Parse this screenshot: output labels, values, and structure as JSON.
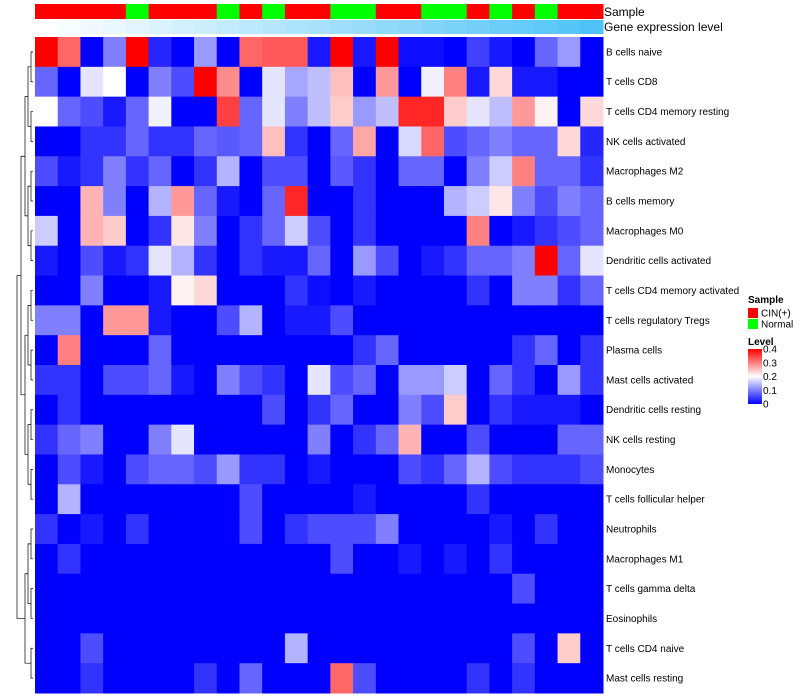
{
  "chart_data": {
    "type": "heatmap",
    "title": "",
    "annotations": {
      "sample_label": "Sample",
      "gene_label": "Gene expression level",
      "sample_groups": [
        "CIN(+)",
        "CIN(+)",
        "CIN(+)",
        "CIN(+)",
        "Normal",
        "CIN(+)",
        "CIN(+)",
        "CIN(+)",
        "Normal",
        "CIN(+)",
        "Normal",
        "CIN(+)",
        "CIN(+)",
        "Normal",
        "Normal",
        "CIN(+)",
        "CIN(+)",
        "Normal",
        "Normal",
        "CIN(+)",
        "Normal",
        "CIN(+)",
        "Normal",
        "CIN(+)",
        "CIN(+)"
      ],
      "gene_expression_level": [
        0.02,
        0.04,
        0.06,
        0.08,
        0.1,
        0.12,
        0.14,
        0.16,
        0.18,
        0.2,
        0.22,
        0.24,
        0.26,
        0.28,
        0.3,
        0.32,
        0.34,
        0.36,
        0.38,
        0.4,
        0.42,
        0.44,
        0.46,
        0.48,
        0.5
      ]
    },
    "rows": [
      "B cells naive",
      "T cells CD8",
      "T cells CD4 memory resting",
      "NK cells activated",
      "Macrophages M2",
      "B cells memory",
      "Macrophages M0",
      "Dendritic cells activated",
      "T cells CD4 memory activated",
      "T cells regulatory  Tregs",
      "Plasma cells",
      "Mast cells activated",
      "Dendritic cells resting",
      "NK cells resting",
      "Monocytes",
      "T cells follicular helper",
      "Neutrophils",
      "Macrophages M1",
      "T cells gamma delta",
      "Eosinophils",
      "T cells CD4 naive",
      "Mast cells resting"
    ],
    "values": [
      [
        0.4,
        0.32,
        0.0,
        0.1,
        0.4,
        0.03,
        0.0,
        0.12,
        0.0,
        0.32,
        0.33,
        0.33,
        0.02,
        0.4,
        0.02,
        0.4,
        0.01,
        0.01,
        0.0,
        0.05,
        0.02,
        0.0,
        0.08,
        0.12,
        0.0
      ],
      [
        0.08,
        0.0,
        0.18,
        0.2,
        0.0,
        0.1,
        0.06,
        0.4,
        0.29,
        0.0,
        0.18,
        0.13,
        0.15,
        0.25,
        0.0,
        0.28,
        0.0,
        0.19,
        0.3,
        0.02,
        0.23,
        0.02,
        0.02,
        0.0,
        0.0
      ],
      [
        0.2,
        0.08,
        0.06,
        0.02,
        0.08,
        0.19,
        0.0,
        0.0,
        0.35,
        0.08,
        0.18,
        0.1,
        0.15,
        0.24,
        0.12,
        0.15,
        0.37,
        0.37,
        0.24,
        0.18,
        0.15,
        0.28,
        0.21,
        0.0,
        0.23
      ],
      [
        0.0,
        0.0,
        0.04,
        0.04,
        0.08,
        0.04,
        0.04,
        0.08,
        0.07,
        0.08,
        0.25,
        0.04,
        0.0,
        0.08,
        0.27,
        0.0,
        0.17,
        0.32,
        0.06,
        0.08,
        0.1,
        0.08,
        0.08,
        0.23,
        0.03
      ],
      [
        0.06,
        0.02,
        0.04,
        0.1,
        0.04,
        0.08,
        0.0,
        0.04,
        0.14,
        0.0,
        0.06,
        0.06,
        0.0,
        0.07,
        0.04,
        0.0,
        0.08,
        0.08,
        0.0,
        0.1,
        0.16,
        0.3,
        0.08,
        0.08,
        0.04
      ],
      [
        0.0,
        0.0,
        0.26,
        0.1,
        0.0,
        0.14,
        0.28,
        0.08,
        0.02,
        0.0,
        0.08,
        0.37,
        0.0,
        0.0,
        0.04,
        0.0,
        0.0,
        0.0,
        0.14,
        0.16,
        0.22,
        0.1,
        0.06,
        0.1,
        0.08
      ],
      [
        0.16,
        0.0,
        0.26,
        0.24,
        0.0,
        0.04,
        0.22,
        0.1,
        0.0,
        0.04,
        0.08,
        0.16,
        0.06,
        0.0,
        0.04,
        0.0,
        0.0,
        0.0,
        0.0,
        0.3,
        0.0,
        0.02,
        0.04,
        0.06,
        0.08
      ],
      [
        0.02,
        0.0,
        0.06,
        0.02,
        0.04,
        0.18,
        0.14,
        0.04,
        0.0,
        0.04,
        0.02,
        0.02,
        0.08,
        0.0,
        0.12,
        0.06,
        0.0,
        0.02,
        0.04,
        0.08,
        0.08,
        0.1,
        0.4,
        0.08,
        0.18
      ],
      [
        0.0,
        0.0,
        0.1,
        0.0,
        0.0,
        0.02,
        0.21,
        0.23,
        0.0,
        0.0,
        0.0,
        0.04,
        0.01,
        0.0,
        0.02,
        0.0,
        0.0,
        0.0,
        0.0,
        0.04,
        0.0,
        0.1,
        0.1,
        0.04,
        0.08
      ],
      [
        0.1,
        0.1,
        0.0,
        0.28,
        0.28,
        0.02,
        0.0,
        0.0,
        0.06,
        0.14,
        0.0,
        0.02,
        0.02,
        0.06,
        0.0,
        0.0,
        0.0,
        0.0,
        0.0,
        0.0,
        0.0,
        0.0,
        0.0,
        0.0,
        0.0
      ],
      [
        0.0,
        0.3,
        0.0,
        0.0,
        0.0,
        0.08,
        0.0,
        0.0,
        0.0,
        0.0,
        0.0,
        0.0,
        0.0,
        0.0,
        0.04,
        0.08,
        0.0,
        0.0,
        0.0,
        0.0,
        0.0,
        0.04,
        0.08,
        0.0,
        0.04
      ],
      [
        0.04,
        0.04,
        0.0,
        0.06,
        0.06,
        0.08,
        0.02,
        0.0,
        0.1,
        0.06,
        0.04,
        0.0,
        0.18,
        0.06,
        0.08,
        0.0,
        0.12,
        0.12,
        0.16,
        0.0,
        0.08,
        0.04,
        0.0,
        0.12,
        0.04
      ],
      [
        0.0,
        0.04,
        0.0,
        0.0,
        0.0,
        0.0,
        0.0,
        0.0,
        0.0,
        0.0,
        0.06,
        0.0,
        0.04,
        0.08,
        0.0,
        0.0,
        0.1,
        0.06,
        0.24,
        0.0,
        0.04,
        0.02,
        0.02,
        0.02,
        0.0
      ],
      [
        0.04,
        0.08,
        0.1,
        0.0,
        0.0,
        0.1,
        0.18,
        0.0,
        0.0,
        0.0,
        0.0,
        0.0,
        0.1,
        0.0,
        0.04,
        0.08,
        0.26,
        0.0,
        0.0,
        0.06,
        0.0,
        0.0,
        0.0,
        0.08,
        0.08
      ],
      [
        0.0,
        0.06,
        0.02,
        0.0,
        0.06,
        0.08,
        0.08,
        0.06,
        0.12,
        0.04,
        0.04,
        0.0,
        0.02,
        0.0,
        0.0,
        0.0,
        0.06,
        0.04,
        0.08,
        0.14,
        0.06,
        0.04,
        0.04,
        0.04,
        0.06
      ],
      [
        0.0,
        0.14,
        0.0,
        0.0,
        0.0,
        0.0,
        0.0,
        0.0,
        0.0,
        0.06,
        0.0,
        0.0,
        0.0,
        0.0,
        0.02,
        0.0,
        0.0,
        0.0,
        0.0,
        0.04,
        0.0,
        0.0,
        0.0,
        0.0,
        0.0
      ],
      [
        0.04,
        0.0,
        0.02,
        0.0,
        0.04,
        0.0,
        0.0,
        0.0,
        0.0,
        0.06,
        0.0,
        0.04,
        0.06,
        0.06,
        0.06,
        0.1,
        0.0,
        0.0,
        0.0,
        0.0,
        0.02,
        0.0,
        0.04,
        0.0,
        0.0
      ],
      [
        0.0,
        0.04,
        0.0,
        0.0,
        0.0,
        0.0,
        0.0,
        0.0,
        0.0,
        0.0,
        0.0,
        0.0,
        0.0,
        0.06,
        0.0,
        0.0,
        0.02,
        0.0,
        0.02,
        0.0,
        0.04,
        0.0,
        0.0,
        0.0,
        0.0
      ],
      [
        0.0,
        0.0,
        0.0,
        0.0,
        0.0,
        0.0,
        0.0,
        0.0,
        0.0,
        0.0,
        0.0,
        0.0,
        0.0,
        0.0,
        0.0,
        0.0,
        0.0,
        0.0,
        0.0,
        0.0,
        0.0,
        0.06,
        0.0,
        0.0,
        0.0
      ],
      [
        0.0,
        0.0,
        0.0,
        0.0,
        0.0,
        0.0,
        0.0,
        0.0,
        0.0,
        0.0,
        0.0,
        0.0,
        0.0,
        0.0,
        0.0,
        0.0,
        0.0,
        0.0,
        0.0,
        0.0,
        0.0,
        0.0,
        0.0,
        0.0,
        0.0
      ],
      [
        0.0,
        0.0,
        0.06,
        0.0,
        0.0,
        0.0,
        0.0,
        0.0,
        0.0,
        0.0,
        0.0,
        0.14,
        0.0,
        0.0,
        0.0,
        0.0,
        0.0,
        0.0,
        0.0,
        0.0,
        0.0,
        0.06,
        0.0,
        0.24,
        0.0
      ],
      [
        0.0,
        0.0,
        0.04,
        0.0,
        0.0,
        0.0,
        0.0,
        0.04,
        0.0,
        0.08,
        0.0,
        0.0,
        0.0,
        0.32,
        0.06,
        0.0,
        0.0,
        0.0,
        0.0,
        0.04,
        0.0,
        0.04,
        0.0,
        0.0,
        0.0
      ]
    ],
    "color_scale": {
      "min": 0,
      "max": 0.4,
      "stops": [
        {
          "value": 0.0,
          "color": "#0000ff"
        },
        {
          "value": 0.2,
          "color": "#ffffff"
        },
        {
          "value": 0.4,
          "color": "#ff0000"
        }
      ]
    },
    "group_colors": {
      "CIN(+)": "#ff0000",
      "Normal": "#00ff00"
    },
    "gene_level_colors": [
      "#ffffff",
      "#4fc3f7"
    ],
    "legend": {
      "sample_title": "Sample",
      "sample_items": [
        "CIN(+)",
        "Normal"
      ],
      "level_title": "Level",
      "level_ticks": [
        "0.4",
        "0.3",
        "0.2",
        "0.1",
        "0"
      ],
      "level_tick_values": [
        0.4,
        0.3,
        0.2,
        0.1,
        0
      ],
      "position": "right"
    },
    "dendrogram": "rows"
  }
}
